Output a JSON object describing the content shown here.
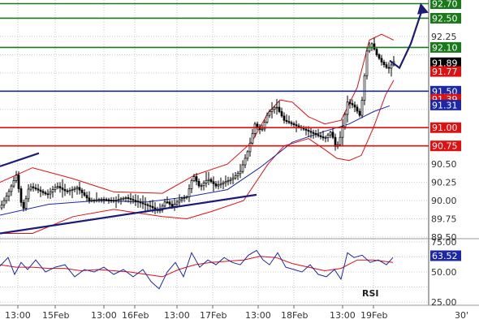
{
  "chart_data": {
    "type": "candlestick",
    "instrument_timeframe": "30'",
    "x_tick_labels": [
      "13:00",
      "15Feb",
      "13:00",
      "16Feb",
      "13:00",
      "17Feb",
      "13:00",
      "18Feb",
      "13:00",
      "19Feb"
    ],
    "price_axis": {
      "ylim": [
        89.5,
        92.75
      ],
      "tick_labels": [
        "89.50",
        "89.75",
        "90.00",
        "90.25",
        "90.50",
        "92.25"
      ]
    },
    "horizontal_levels": [
      {
        "value": 92.7,
        "label": "92.70",
        "color": "#1a7a1a"
      },
      {
        "value": 92.5,
        "label": "92.50",
        "color": "#1a7a1a"
      },
      {
        "value": 92.1,
        "label": "92.10",
        "color": "#1a7a1a"
      },
      {
        "value": 91.5,
        "label": "91.50",
        "color": "#1c28a8"
      },
      {
        "value": 91.0,
        "label": "91.00",
        "color": "#e01010"
      },
      {
        "value": 90.75,
        "label": "90.75",
        "color": "#e01010"
      }
    ],
    "value_badges": [
      {
        "value": 91.89,
        "label": "91.89",
        "color": "#000000"
      },
      {
        "value": 91.77,
        "label": "91.77",
        "color": "#e01010"
      },
      {
        "value": 91.39,
        "label": "91.39",
        "color": "#e01010"
      },
      {
        "value": 91.31,
        "label": "91.31",
        "color": "#1c28a8"
      }
    ],
    "trendlines": [
      {
        "x": [
          0,
          48
        ],
        "y": [
          90.47,
          90.65
        ],
        "color": "#1c1c78"
      },
      {
        "x": [
          0,
          316
        ],
        "y": [
          89.55,
          90.08
        ],
        "color": "#1c1c78"
      }
    ],
    "projection_arrow": {
      "x": [
        480,
        492,
        506,
        520
      ],
      "y": [
        91.92,
        91.82,
        92.15,
        92.62
      ],
      "color": "#1c1c78"
    },
    "price_path": {
      "x": [
        0,
        10,
        20,
        28,
        36,
        46,
        58,
        70,
        82,
        95,
        110,
        125,
        140,
        155,
        170,
        185,
        196,
        204,
        212,
        222,
        230,
        238,
        246,
        256,
        266,
        276,
        286,
        296,
        306,
        314,
        322,
        330,
        340,
        350,
        360,
        370,
        380,
        390,
        400,
        408,
        414,
        420,
        428,
        436,
        444,
        452,
        458,
        464,
        470,
        478,
        486
      ],
      "y": [
        89.9,
        90.1,
        90.35,
        89.85,
        90.2,
        90.15,
        90.08,
        90.2,
        90.12,
        90.18,
        90.0,
        90.02,
        90.0,
        90.04,
        89.98,
        89.92,
        89.85,
        90.0,
        89.92,
        90.02,
        90.05,
        90.35,
        90.18,
        90.3,
        90.2,
        90.25,
        90.3,
        90.4,
        90.7,
        91.05,
        90.95,
        91.2,
        91.3,
        91.1,
        91.05,
        91.0,
        90.95,
        90.9,
        90.85,
        90.95,
        90.7,
        90.9,
        91.35,
        91.3,
        91.15,
        92.05,
        92.15,
        92.0,
        91.9,
        91.8,
        91.92
      ]
    },
    "moving_average": {
      "x": [
        0,
        60,
        120,
        180,
        230,
        280,
        320,
        360,
        400,
        430,
        460,
        480
      ],
      "y": [
        89.8,
        89.95,
        90.0,
        89.98,
        90.05,
        90.15,
        90.45,
        90.8,
        90.95,
        91.05,
        91.22,
        91.3
      ]
    },
    "bollinger_upper": {
      "x": [
        0,
        40,
        90,
        140,
        200,
        240,
        280,
        310,
        330,
        345,
        360,
        380,
        400,
        420,
        440,
        455,
        470,
        485
      ],
      "y": [
        90.25,
        90.45,
        90.3,
        90.12,
        90.1,
        90.35,
        90.5,
        90.8,
        91.2,
        91.38,
        91.35,
        91.15,
        91.05,
        91.1,
        91.55,
        92.2,
        92.28,
        92.2
      ]
    },
    "bollinger_lower": {
      "x": [
        0,
        40,
        90,
        140,
        200,
        230,
        260,
        300,
        330,
        350,
        380,
        400,
        415,
        430,
        445,
        460,
        475,
        485
      ],
      "y": [
        89.55,
        89.55,
        89.78,
        89.88,
        89.78,
        89.75,
        89.85,
        90.0,
        90.5,
        90.75,
        90.85,
        90.7,
        90.58,
        90.55,
        90.62,
        91.0,
        91.45,
        91.65
      ]
    },
    "rsi_panel": {
      "label": "RSI",
      "value_label": "63.52",
      "ylim": [
        25,
        75
      ],
      "tick_labels": [
        "75.00",
        "50.00",
        "25.00"
      ],
      "rsi": {
        "x": [
          0,
          10,
          18,
          26,
          34,
          44,
          56,
          68,
          80,
          92,
          104,
          116,
          128,
          140,
          152,
          164,
          176,
          186,
          196,
          206,
          216,
          226,
          236,
          246,
          256,
          266,
          276,
          286,
          296,
          306,
          316,
          324,
          332,
          342,
          352,
          362,
          372,
          382,
          392,
          402,
          412,
          420,
          428,
          436,
          446,
          456,
          466,
          476,
          484
        ],
        "y": [
          55,
          62,
          48,
          58,
          52,
          60,
          50,
          54,
          56,
          46,
          52,
          50,
          54,
          48,
          52,
          46,
          52,
          42,
          36,
          50,
          58,
          46,
          66,
          54,
          60,
          56,
          62,
          58,
          56,
          64,
          68,
          60,
          56,
          66,
          54,
          52,
          50,
          56,
          48,
          46,
          52,
          44,
          66,
          62,
          64,
          58,
          60,
          56,
          62
        ]
      },
      "signal": {
        "x": [
          0,
          20,
          40,
          60,
          80,
          100,
          120,
          140,
          160,
          180,
          200,
          220,
          240,
          260,
          280,
          300,
          320,
          340,
          360,
          380,
          400,
          420,
          440,
          460,
          484
        ],
        "y": [
          56,
          54,
          54,
          53,
          53,
          51,
          52,
          51,
          50,
          48,
          46,
          52,
          56,
          58,
          59,
          60,
          63,
          62,
          57,
          54,
          51,
          53,
          60,
          60,
          58
        ]
      }
    },
    "colors": {
      "candles": "#000000",
      "moving_average": "#1c28a8",
      "bollinger": "#e01010",
      "rsi_line": "#1c28a8",
      "rsi_signal": "#e01010",
      "grid": "#c8c8c8",
      "panel_border": "#555555"
    },
    "grid": true
  }
}
